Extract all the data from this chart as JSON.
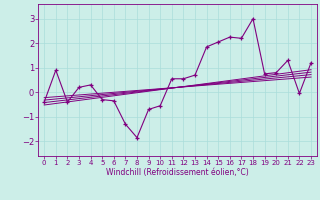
{
  "xlabel": "Windchill (Refroidissement éolien,°C)",
  "bg_color": "#cceee8",
  "line_color": "#800080",
  "xlim": [
    -0.5,
    23.5
  ],
  "ylim": [
    -2.6,
    3.6
  ],
  "yticks": [
    -2,
    -1,
    0,
    1,
    2,
    3
  ],
  "xticks": [
    0,
    1,
    2,
    3,
    4,
    5,
    6,
    7,
    8,
    9,
    10,
    11,
    12,
    13,
    14,
    15,
    16,
    17,
    18,
    19,
    20,
    21,
    22,
    23
  ],
  "main_series": [
    [
      0,
      -0.4
    ],
    [
      1,
      0.9
    ],
    [
      2,
      -0.4
    ],
    [
      3,
      0.2
    ],
    [
      4,
      0.3
    ],
    [
      5,
      -0.3
    ],
    [
      6,
      -0.35
    ],
    [
      7,
      -1.3
    ],
    [
      8,
      -1.85
    ],
    [
      9,
      -0.7
    ],
    [
      10,
      -0.55
    ],
    [
      11,
      0.55
    ],
    [
      12,
      0.55
    ],
    [
      13,
      0.7
    ],
    [
      14,
      1.85
    ],
    [
      15,
      2.05
    ],
    [
      16,
      2.25
    ],
    [
      17,
      2.2
    ],
    [
      18,
      3.0
    ],
    [
      19,
      0.75
    ],
    [
      20,
      0.8
    ],
    [
      21,
      1.3
    ],
    [
      22,
      -0.05
    ],
    [
      23,
      1.2
    ]
  ],
  "reg_lines": [
    [
      [
        0,
        -0.52
      ],
      [
        23,
        0.92
      ]
    ],
    [
      [
        0,
        -0.42
      ],
      [
        23,
        0.82
      ]
    ],
    [
      [
        0,
        -0.32
      ],
      [
        23,
        0.72
      ]
    ],
    [
      [
        0,
        -0.22
      ],
      [
        23,
        0.62
      ]
    ]
  ],
  "xlabel_fontsize": 5.5,
  "ytick_fontsize": 6,
  "xtick_fontsize": 5
}
